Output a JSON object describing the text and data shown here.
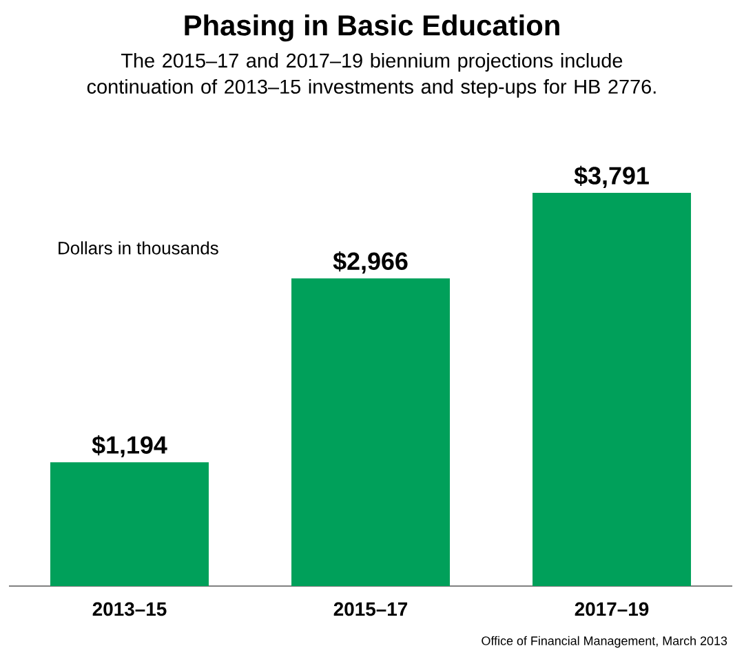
{
  "chart_data": {
    "type": "bar",
    "title": "Phasing in Basic Education",
    "subtitle": "The 2015–17 and 2017–19 biennium projections include continuation of 2013–15 investments and step-ups for HB 2776.",
    "categories": [
      "2013–15",
      "2015–17",
      "2017–19"
    ],
    "values": [
      1194,
      2966,
      3791
    ],
    "value_labels": [
      "$1,194",
      "$2,966",
      "$3,791"
    ],
    "color": "#00a05a",
    "annotations": [
      "Dollars in thousands",
      "Office of Financial Management, March 2013"
    ]
  }
}
